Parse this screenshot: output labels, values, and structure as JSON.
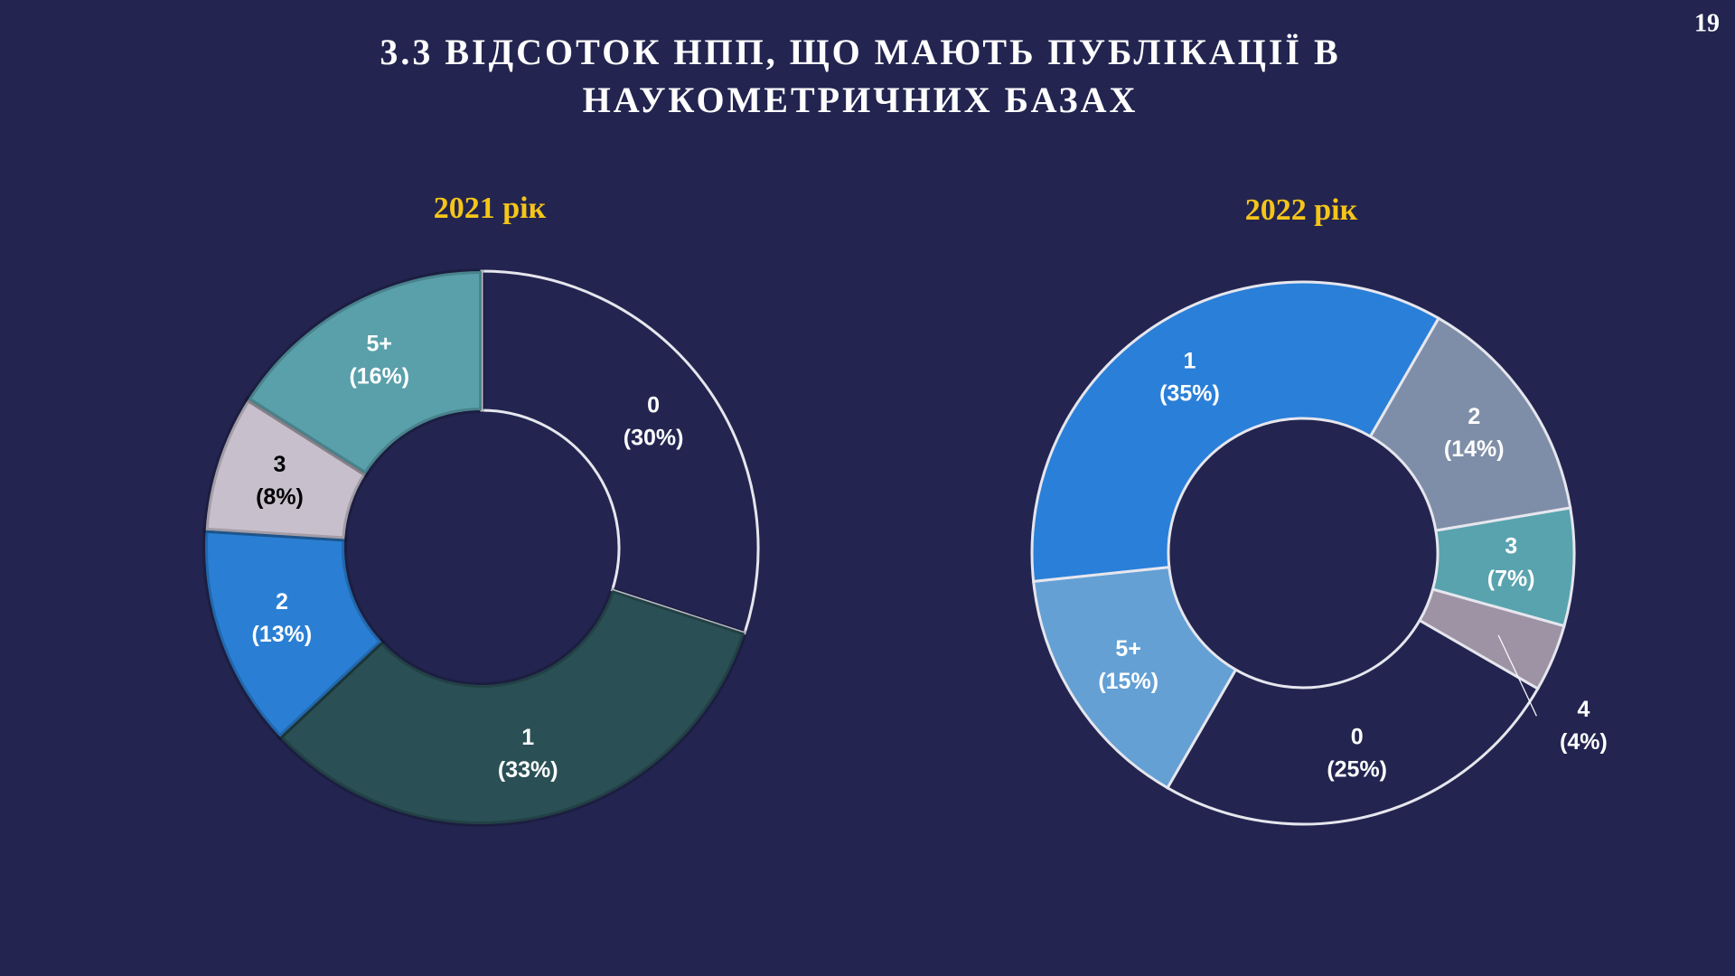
{
  "page_number": "19",
  "title": [
    "3.3 ВІДСОТОК НПП, ЩО МАЮТЬ ПУБЛІКАЦІЇ В",
    "НАУКОМЕТРИЧНИХ  БАЗАХ"
  ],
  "chart_data": [
    {
      "type": "donut",
      "title": "2021 рік",
      "start_angle": 0,
      "categories": [
        "0",
        "1",
        "2",
        "3",
        "5+"
      ],
      "values": [
        30,
        33,
        13,
        8,
        16
      ],
      "value_labels": [
        "(30%)",
        "(33%)",
        "(13%)",
        "(8%)",
        "(16%)"
      ],
      "colors": [
        "#232550",
        "#2a5055",
        "#2a7fd4",
        "#c7c0cc",
        "#5aa0ab"
      ]
    },
    {
      "type": "donut",
      "title": "2022 рік",
      "start_angle": 120,
      "categories": [
        "0",
        "5+",
        "1",
        "2",
        "3",
        "4"
      ],
      "values": [
        25,
        15,
        35,
        14,
        7,
        4
      ],
      "value_labels": [
        "(25%)",
        "(15%)",
        "(35%)",
        "(14%)",
        "(7%)",
        "(4%)"
      ],
      "colors": [
        "#232550",
        "#64a0d4",
        "#2a7fd8",
        "#7f8ea8",
        "#58a3ae",
        "#9e93a5"
      ]
    }
  ]
}
